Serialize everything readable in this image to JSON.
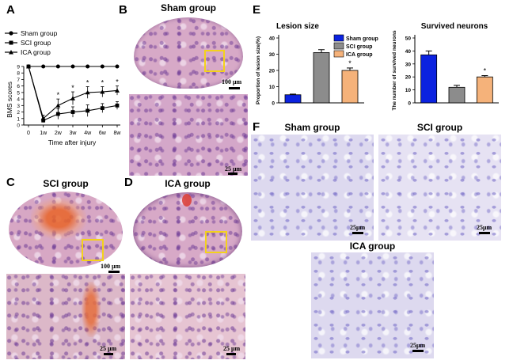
{
  "panels": {
    "a": "A",
    "b": "B",
    "c": "C",
    "d": "D",
    "e": "E",
    "f": "F"
  },
  "bms_chart": {
    "type": "line",
    "x": [
      "0",
      "1w",
      "2w",
      "3w",
      "4w",
      "6w",
      "8w"
    ],
    "xlabel": "Time after injury",
    "ylabel": "BMS scores",
    "ylim": [
      0,
      9
    ],
    "yticks": [
      "0",
      "1",
      "2",
      "3",
      "4",
      "5",
      "6",
      "7",
      "8",
      "9"
    ],
    "legend": [
      "Sham group",
      "SCI group",
      "ICA group"
    ],
    "series": [
      {
        "name": "Sham group",
        "values": [
          9,
          9,
          9,
          9,
          9,
          9,
          9
        ],
        "err": [
          0,
          0,
          0,
          0,
          0,
          0,
          0
        ]
      },
      {
        "name": "SCI group",
        "values": [
          9,
          0.7,
          1.7,
          2.0,
          2.2,
          2.6,
          3.0
        ],
        "err": [
          0,
          0.3,
          0.8,
          0.8,
          0.9,
          0.7,
          0.6
        ]
      },
      {
        "name": "ICA group",
        "values": [
          9,
          1.0,
          3.0,
          4.1,
          5.0,
          5.1,
          5.3
        ],
        "err": [
          0,
          0.5,
          1.0,
          1.0,
          0.9,
          0.8,
          0.7
        ]
      }
    ],
    "star_label": "*",
    "stars_at": [
      "2w",
      "3w",
      "4w",
      "6w",
      "8w"
    ]
  },
  "chart_data": [
    {
      "type": "bar",
      "title": "Lesion size",
      "ylabel": "Proportion of lesion size(%)",
      "ylim": [
        0,
        40
      ],
      "yticks": [
        "0",
        "10",
        "20",
        "30",
        "40"
      ],
      "categories": [
        "Sham group",
        "SCI group",
        "ICA group"
      ],
      "values": [
        5,
        31,
        20
      ],
      "errors": [
        0.4,
        1.8,
        1.5
      ],
      "colors": [
        "#0b22e0",
        "#8c8c8c",
        "#f5b27a"
      ],
      "star_label": "*",
      "legend": [
        "Sham group",
        "SCI group",
        "ICA group"
      ],
      "legend_position": "top-right"
    },
    {
      "type": "bar",
      "title": "Survived neurons",
      "ylabel": "The number of survived neurons",
      "ylim": [
        0,
        50
      ],
      "yticks": [
        "0",
        "10",
        "20",
        "30",
        "40",
        "50"
      ],
      "categories": [
        "Sham group",
        "SCI group",
        "ICA group"
      ],
      "values": [
        37,
        12,
        20
      ],
      "errors": [
        3,
        1.5,
        1
      ],
      "colors": [
        "#0b22e0",
        "#8c8c8c",
        "#f5b27a"
      ],
      "star_label": "*"
    }
  ],
  "micrographs": {
    "b_title": "Sham group",
    "c_title": "SCI group",
    "d_title": "ICA group",
    "f_sham": "Sham group",
    "f_sci": "SCI group",
    "f_ica": "ICA group",
    "scale_100": "100 μm",
    "scale_25": "25 μm",
    "scale_25_tight": "25μm"
  }
}
